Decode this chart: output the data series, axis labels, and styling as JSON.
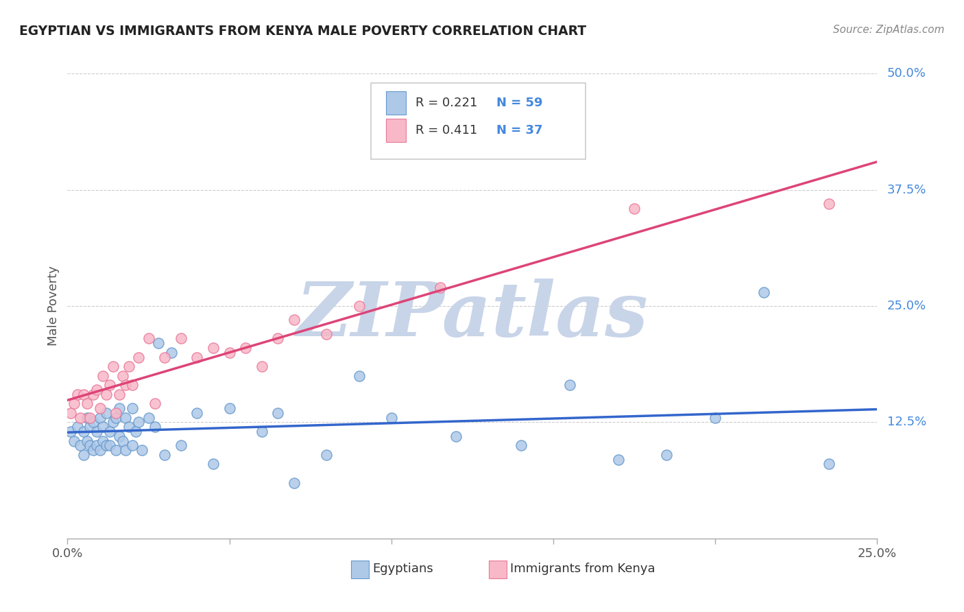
{
  "title": "EGYPTIAN VS IMMIGRANTS FROM KENYA MALE POVERTY CORRELATION CHART",
  "source_text": "Source: ZipAtlas.com",
  "ylabel_text": "Male Poverty",
  "xlim": [
    0.0,
    0.25
  ],
  "ylim": [
    0.0,
    0.5
  ],
  "xtick_positions": [
    0.0,
    0.05,
    0.1,
    0.15,
    0.2,
    0.25
  ],
  "xtick_show": [
    0.0,
    0.25
  ],
  "ytick_positions": [
    0.125,
    0.25,
    0.375,
    0.5
  ],
  "ytick_labels": [
    "12.5%",
    "25.0%",
    "37.5%",
    "50.0%"
  ],
  "grid_color": "#cccccc",
  "background_color": "#ffffff",
  "watermark": "ZIPatlas",
  "watermark_color": "#c8d4e8",
  "egyptians_color": "#aec8e8",
  "egyptians_edge_color": "#6699cc",
  "kenya_color": "#f8b8c8",
  "kenya_edge_color": "#e87898",
  "line_egypt_color": "#3366cc",
  "line_kenya_color": "#dd4477",
  "legend_R_egypt": "R = 0.221",
  "legend_N_egypt": "N = 59",
  "legend_R_kenya": "R = 0.411",
  "legend_N_kenya": "N = 37",
  "egyptians_x": [
    0.001,
    0.002,
    0.003,
    0.004,
    0.005,
    0.005,
    0.006,
    0.006,
    0.007,
    0.007,
    0.008,
    0.008,
    0.009,
    0.009,
    0.01,
    0.01,
    0.011,
    0.011,
    0.012,
    0.012,
    0.013,
    0.013,
    0.014,
    0.015,
    0.015,
    0.016,
    0.016,
    0.017,
    0.018,
    0.018,
    0.019,
    0.02,
    0.02,
    0.021,
    0.022,
    0.023,
    0.025,
    0.027,
    0.028,
    0.03,
    0.032,
    0.035,
    0.04,
    0.045,
    0.05,
    0.06,
    0.065,
    0.07,
    0.08,
    0.09,
    0.1,
    0.12,
    0.14,
    0.155,
    0.17,
    0.185,
    0.2,
    0.215,
    0.235
  ],
  "egyptians_y": [
    0.115,
    0.105,
    0.12,
    0.1,
    0.09,
    0.115,
    0.105,
    0.13,
    0.1,
    0.12,
    0.095,
    0.125,
    0.1,
    0.115,
    0.095,
    0.13,
    0.105,
    0.12,
    0.1,
    0.135,
    0.115,
    0.1,
    0.125,
    0.095,
    0.13,
    0.11,
    0.14,
    0.105,
    0.095,
    0.13,
    0.12,
    0.1,
    0.14,
    0.115,
    0.125,
    0.095,
    0.13,
    0.12,
    0.21,
    0.09,
    0.2,
    0.1,
    0.135,
    0.08,
    0.14,
    0.115,
    0.135,
    0.06,
    0.09,
    0.175,
    0.13,
    0.11,
    0.1,
    0.165,
    0.085,
    0.09,
    0.13,
    0.265,
    0.08
  ],
  "kenya_x": [
    0.001,
    0.002,
    0.003,
    0.004,
    0.005,
    0.006,
    0.007,
    0.008,
    0.009,
    0.01,
    0.011,
    0.012,
    0.013,
    0.014,
    0.015,
    0.016,
    0.017,
    0.018,
    0.019,
    0.02,
    0.022,
    0.025,
    0.027,
    0.03,
    0.035,
    0.04,
    0.045,
    0.05,
    0.055,
    0.06,
    0.065,
    0.07,
    0.08,
    0.09,
    0.115,
    0.175,
    0.235
  ],
  "kenya_y": [
    0.135,
    0.145,
    0.155,
    0.13,
    0.155,
    0.145,
    0.13,
    0.155,
    0.16,
    0.14,
    0.175,
    0.155,
    0.165,
    0.185,
    0.135,
    0.155,
    0.175,
    0.165,
    0.185,
    0.165,
    0.195,
    0.215,
    0.145,
    0.195,
    0.215,
    0.195,
    0.205,
    0.2,
    0.205,
    0.185,
    0.215,
    0.235,
    0.22,
    0.25,
    0.27,
    0.355,
    0.36
  ],
  "dot_size": 120
}
